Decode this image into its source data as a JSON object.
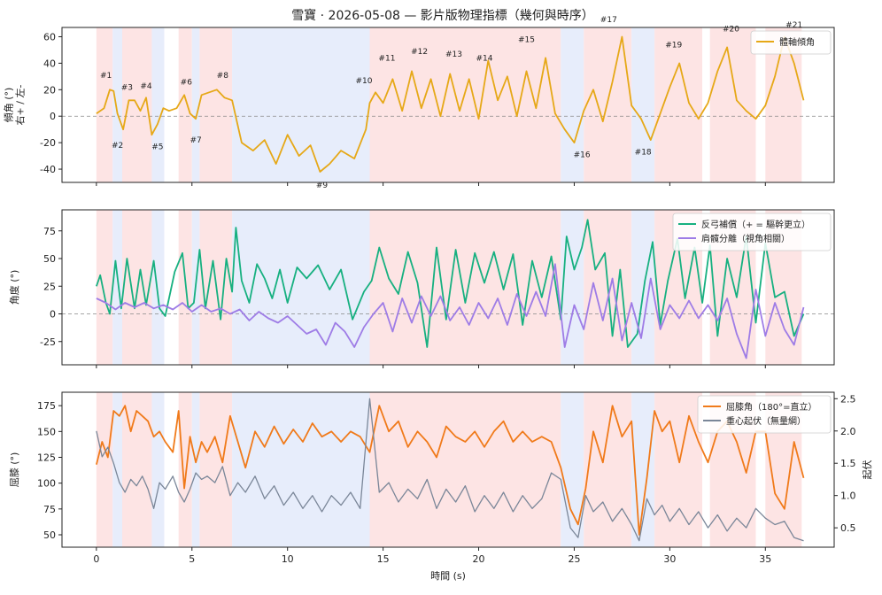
{
  "figure": {
    "title": "雪寶 · 2026-05-08 — 影片版物理指標（幾何與時序）"
  },
  "colors": {
    "tilt": "#e6a817",
    "compensation": "#17b080",
    "separation": "#9e7ce6",
    "knee": "#f07a1a",
    "cog": "#7a8698",
    "band_red": "#fde4e4",
    "band_blue": "#e7edfb",
    "zero_line": "#888888",
    "frame": "#222222"
  },
  "chart_data": [
    {
      "type": "line",
      "panel": "top",
      "ylabel": "傾角 (°)\n右+ / 左-",
      "xlim": [
        -1.8,
        38.6
      ],
      "ylim": [
        -50,
        67
      ],
      "yticks": [
        -40,
        -20,
        0,
        20,
        40,
        60
      ],
      "zero_line": true,
      "legend_position": "top-right",
      "series": [
        {
          "name": "體軸傾角",
          "color": "#e6a817",
          "x": [
            0,
            0.4,
            0.7,
            0.9,
            1.1,
            1.4,
            1.7,
            2.0,
            2.3,
            2.6,
            2.9,
            3.2,
            3.5,
            3.8,
            4.2,
            4.6,
            4.9,
            5.2,
            5.5,
            5.9,
            6.3,
            6.7,
            7.1,
            7.6,
            8.2,
            8.8,
            9.4,
            10.0,
            10.6,
            11.2,
            11.7,
            12.2,
            12.8,
            13.5,
            14.1,
            14.3,
            14.6,
            15.0,
            15.5,
            16.0,
            16.5,
            17.0,
            17.5,
            18.0,
            18.5,
            19.0,
            19.5,
            20.0,
            20.5,
            21.0,
            21.5,
            22.0,
            22.5,
            23.0,
            23.5,
            24.0,
            24.5,
            25.0,
            25.5,
            26.0,
            26.5,
            27.0,
            27.5,
            28.0,
            28.5,
            29.0,
            29.5,
            30.0,
            30.5,
            31.0,
            31.5,
            32.0,
            32.5,
            33.0,
            33.5,
            34.0,
            34.5,
            35.0,
            35.5,
            36.0,
            36.5,
            37.0
          ],
          "y": [
            2,
            6,
            20,
            19,
            2,
            -10,
            12,
            12,
            4,
            14,
            -14,
            -6,
            6,
            4,
            6,
            16,
            2,
            -2,
            16,
            18,
            20,
            14,
            12,
            -20,
            -26,
            -18,
            -36,
            -14,
            -30,
            -22,
            -42,
            -36,
            -26,
            -32,
            -10,
            10,
            18,
            10,
            28,
            4,
            34,
            6,
            28,
            0,
            32,
            4,
            28,
            -2,
            42,
            12,
            30,
            0,
            34,
            6,
            44,
            2,
            -10,
            -20,
            4,
            20,
            -4,
            26,
            60,
            8,
            -2,
            -18,
            2,
            22,
            40,
            10,
            -2,
            10,
            34,
            52,
            12,
            4,
            -2,
            8,
            30,
            60,
            40,
            12
          ]
        }
      ],
      "annotations": [
        {
          "label": "#1",
          "x": 0.5,
          "y": 29
        },
        {
          "label": "#2",
          "x": 1.1,
          "y": -24
        },
        {
          "label": "#3",
          "x": 1.6,
          "y": 20
        },
        {
          "label": "#4",
          "x": 2.6,
          "y": 21
        },
        {
          "label": "#5",
          "x": 3.2,
          "y": -25
        },
        {
          "label": "#6",
          "x": 4.7,
          "y": 24
        },
        {
          "label": "#7",
          "x": 5.2,
          "y": -20
        },
        {
          "label": "#8",
          "x": 6.6,
          "y": 29
        },
        {
          "label": "#9",
          "x": 11.8,
          "y": -54
        },
        {
          "label": "#10",
          "x": 14.0,
          "y": 25
        },
        {
          "label": "#11",
          "x": 15.2,
          "y": 42
        },
        {
          "label": "#12",
          "x": 16.9,
          "y": 47
        },
        {
          "label": "#13",
          "x": 18.7,
          "y": 45
        },
        {
          "label": "#14",
          "x": 20.3,
          "y": 42
        },
        {
          "label": "#15",
          "x": 22.5,
          "y": 56
        },
        {
          "label": "#16",
          "x": 25.4,
          "y": -31
        },
        {
          "label": "#17",
          "x": 26.8,
          "y": 71
        },
        {
          "label": "#18",
          "x": 28.6,
          "y": -29
        },
        {
          "label": "#19",
          "x": 30.2,
          "y": 52
        },
        {
          "label": "#20",
          "x": 33.2,
          "y": 64
        },
        {
          "label": "#21",
          "x": 36.5,
          "y": 67
        }
      ]
    },
    {
      "type": "line",
      "panel": "middle",
      "ylabel": "角度 (°)",
      "xlim": [
        -1.8,
        38.6
      ],
      "ylim": [
        -46,
        94
      ],
      "yticks": [
        -25,
        0,
        25,
        50,
        75
      ],
      "zero_line": true,
      "legend_position": "top-right",
      "series": [
        {
          "name": "反弓補償（+ = 驅幹更立）",
          "color": "#17b080",
          "x": [
            0,
            0.2,
            0.5,
            0.7,
            1.0,
            1.3,
            1.6,
            2.0,
            2.3,
            2.6,
            3.0,
            3.3,
            3.6,
            4.1,
            4.5,
            4.8,
            5.1,
            5.4,
            5.7,
            6.1,
            6.5,
            6.8,
            7.1,
            7.3,
            7.6,
            8.0,
            8.4,
            8.8,
            9.2,
            9.6,
            10.0,
            10.5,
            11.0,
            11.6,
            12.2,
            12.8,
            13.4,
            14.0,
            14.4,
            14.8,
            15.3,
            15.8,
            16.3,
            16.8,
            17.3,
            17.8,
            18.3,
            18.8,
            19.3,
            19.8,
            20.3,
            20.8,
            21.3,
            21.8,
            22.3,
            22.8,
            23.3,
            23.8,
            24.3,
            24.6,
            25.0,
            25.4,
            25.7,
            26.1,
            26.6,
            27.0,
            27.4,
            27.8,
            28.3,
            28.7,
            29.1,
            29.5,
            29.9,
            30.4,
            30.8,
            31.3,
            31.7,
            32.1,
            32.5,
            33.0,
            33.5,
            34.0,
            34.5,
            35.0,
            35.5,
            36.0,
            36.5,
            37.0
          ],
          "y": [
            25,
            35,
            10,
            0,
            48,
            5,
            50,
            5,
            40,
            8,
            48,
            5,
            -2,
            38,
            55,
            5,
            10,
            58,
            5,
            48,
            -5,
            50,
            20,
            78,
            30,
            10,
            45,
            32,
            14,
            40,
            10,
            42,
            32,
            44,
            22,
            40,
            -5,
            20,
            30,
            60,
            32,
            18,
            56,
            28,
            -30,
            60,
            -5,
            58,
            10,
            55,
            28,
            56,
            22,
            54,
            -10,
            48,
            15,
            52,
            -5,
            70,
            40,
            60,
            85,
            40,
            55,
            -20,
            40,
            -30,
            -18,
            30,
            65,
            -10,
            30,
            68,
            14,
            60,
            10,
            62,
            -20,
            50,
            15,
            70,
            -8,
            64,
            15,
            20,
            -20,
            0
          ]
        },
        {
          "name": "肩髖分離（視角相關）",
          "color": "#9e7ce6",
          "x": [
            0,
            0.5,
            1.0,
            1.5,
            2.0,
            2.5,
            3.0,
            3.5,
            4.0,
            4.5,
            5.0,
            5.5,
            6.0,
            6.5,
            7.0,
            7.5,
            8.0,
            8.5,
            9.0,
            9.5,
            10.0,
            10.5,
            11.0,
            11.5,
            12.0,
            12.5,
            13.0,
            13.5,
            14.0,
            14.5,
            15.0,
            15.5,
            16.0,
            16.5,
            17.0,
            17.5,
            18.0,
            18.5,
            19.0,
            19.5,
            20.0,
            20.5,
            21.0,
            21.5,
            22.0,
            22.5,
            23.0,
            23.5,
            24.0,
            24.5,
            25.0,
            25.5,
            26.0,
            26.5,
            27.0,
            27.5,
            28.0,
            28.5,
            29.0,
            29.5,
            30.0,
            30.5,
            31.0,
            31.5,
            32.0,
            32.5,
            33.0,
            33.5,
            34.0,
            34.5,
            35.0,
            35.5,
            36.0,
            36.5,
            37.0
          ],
          "y": [
            14,
            10,
            4,
            10,
            6,
            10,
            5,
            8,
            4,
            10,
            2,
            8,
            2,
            5,
            0,
            4,
            -6,
            2,
            -4,
            -8,
            -2,
            -10,
            -18,
            -14,
            -28,
            -8,
            -16,
            -30,
            -12,
            0,
            10,
            -16,
            14,
            -8,
            16,
            -2,
            16,
            -6,
            6,
            -10,
            10,
            -4,
            14,
            -10,
            18,
            -2,
            20,
            -2,
            45,
            -30,
            8,
            -14,
            28,
            -6,
            32,
            -24,
            10,
            -22,
            32,
            -14,
            8,
            -4,
            12,
            -4,
            8,
            -6,
            14,
            -18,
            -40,
            22,
            -20,
            10,
            -14,
            -28,
            6
          ]
        }
      ]
    },
    {
      "type": "line",
      "panel": "bottom",
      "ylabel": "屈膝 (°)",
      "y2label": "起伏",
      "xlim": [
        -1.8,
        38.6
      ],
      "ylim": [
        38,
        188
      ],
      "y2lim": [
        0.2,
        2.6
      ],
      "yticks": [
        50,
        75,
        100,
        125,
        150,
        175
      ],
      "y2ticks": [
        0.5,
        1.0,
        1.5,
        2.0,
        2.5
      ],
      "xticks": [
        0,
        5,
        10,
        15,
        20,
        25,
        30,
        35
      ],
      "xlabel": "時間 (s)",
      "legend_position": "top-right",
      "series": [
        {
          "name": "屈膝角（180°=直立）",
          "color": "#f07a1a",
          "axis": "left",
          "x": [
            0,
            0.3,
            0.6,
            0.9,
            1.2,
            1.5,
            1.8,
            2.1,
            2.4,
            2.7,
            3.0,
            3.3,
            3.6,
            4.0,
            4.3,
            4.6,
            4.9,
            5.2,
            5.5,
            5.8,
            6.2,
            6.6,
            7.0,
            7.4,
            7.8,
            8.3,
            8.8,
            9.3,
            9.8,
            10.3,
            10.8,
            11.3,
            11.8,
            12.3,
            12.8,
            13.3,
            13.8,
            14.3,
            14.8,
            15.3,
            15.8,
            16.3,
            16.8,
            17.3,
            17.8,
            18.3,
            18.8,
            19.3,
            19.8,
            20.3,
            20.8,
            21.3,
            21.8,
            22.3,
            22.8,
            23.3,
            23.8,
            24.3,
            24.8,
            25.2,
            25.6,
            26.0,
            26.5,
            27.0,
            27.5,
            28.0,
            28.4,
            28.8,
            29.2,
            29.6,
            30.0,
            30.5,
            31.0,
            31.5,
            32.0,
            32.5,
            33.0,
            33.5,
            34.0,
            34.5,
            35.0,
            35.5,
            36.0,
            36.5,
            37.0
          ],
          "y": [
            118,
            140,
            125,
            170,
            165,
            175,
            150,
            170,
            165,
            160,
            145,
            150,
            140,
            130,
            170,
            95,
            145,
            120,
            140,
            130,
            145,
            120,
            165,
            140,
            115,
            150,
            135,
            155,
            138,
            152,
            140,
            158,
            145,
            150,
            140,
            150,
            145,
            130,
            175,
            150,
            160,
            135,
            150,
            140,
            125,
            155,
            145,
            140,
            150,
            135,
            150,
            160,
            140,
            150,
            140,
            145,
            140,
            115,
            75,
            60,
            95,
            150,
            120,
            175,
            145,
            160,
            50,
            105,
            170,
            150,
            160,
            120,
            165,
            140,
            120,
            150,
            160,
            140,
            110,
            150,
            150,
            90,
            75,
            140,
            105
          ]
        },
        {
          "name": "重心起伏（無量綱）",
          "color": "#7a8698",
          "axis": "right",
          "x": [
            0,
            0.3,
            0.6,
            0.9,
            1.2,
            1.5,
            1.8,
            2.1,
            2.4,
            2.7,
            3.0,
            3.3,
            3.6,
            4.0,
            4.3,
            4.6,
            4.9,
            5.2,
            5.5,
            5.8,
            6.2,
            6.6,
            7.0,
            7.4,
            7.8,
            8.3,
            8.8,
            9.3,
            9.8,
            10.3,
            10.8,
            11.3,
            11.8,
            12.3,
            12.8,
            13.3,
            13.8,
            14.3,
            14.8,
            15.3,
            15.8,
            16.3,
            16.8,
            17.3,
            17.8,
            18.3,
            18.8,
            19.3,
            19.8,
            20.3,
            20.8,
            21.3,
            21.8,
            22.3,
            22.8,
            23.3,
            23.8,
            24.3,
            24.8,
            25.2,
            25.6,
            26.0,
            26.5,
            27.0,
            27.5,
            28.0,
            28.4,
            28.8,
            29.2,
            29.6,
            30.0,
            30.5,
            31.0,
            31.5,
            32.0,
            32.5,
            33.0,
            33.5,
            34.0,
            34.5,
            35.0,
            35.5,
            36.0,
            36.5,
            37.0
          ],
          "y": [
            2.0,
            1.6,
            1.75,
            1.5,
            1.2,
            1.05,
            1.25,
            1.15,
            1.3,
            1.1,
            0.8,
            1.2,
            1.1,
            1.3,
            1.05,
            0.9,
            1.1,
            1.35,
            1.25,
            1.3,
            1.2,
            1.45,
            1.0,
            1.2,
            1.05,
            1.3,
            0.95,
            1.15,
            0.85,
            1.05,
            0.8,
            1.0,
            0.75,
            1.0,
            0.85,
            1.05,
            0.8,
            2.5,
            1.05,
            1.2,
            0.9,
            1.1,
            0.95,
            1.25,
            0.8,
            1.1,
            0.9,
            1.15,
            0.75,
            1.0,
            0.8,
            1.05,
            0.75,
            1.0,
            0.8,
            0.95,
            1.35,
            1.25,
            0.5,
            0.35,
            1.0,
            0.75,
            0.9,
            0.6,
            0.8,
            0.55,
            0.3,
            0.95,
            0.7,
            0.85,
            0.6,
            0.8,
            0.55,
            0.75,
            0.5,
            0.7,
            0.45,
            0.65,
            0.5,
            0.8,
            0.65,
            0.55,
            0.6,
            0.35,
            0.3
          ]
        }
      ]
    }
  ],
  "bands": [
    {
      "x0": 0.0,
      "x1": 0.85,
      "kind": "red"
    },
    {
      "x0": 0.85,
      "x1": 1.35,
      "kind": "blue"
    },
    {
      "x0": 1.35,
      "x1": 2.9,
      "kind": "red"
    },
    {
      "x0": 2.9,
      "x1": 3.55,
      "kind": "blue"
    },
    {
      "x0": 4.3,
      "x1": 5.0,
      "kind": "red"
    },
    {
      "x0": 5.0,
      "x1": 5.4,
      "kind": "blue"
    },
    {
      "x0": 5.4,
      "x1": 7.1,
      "kind": "red"
    },
    {
      "x0": 7.1,
      "x1": 14.3,
      "kind": "blue"
    },
    {
      "x0": 14.3,
      "x1": 24.3,
      "kind": "red"
    },
    {
      "x0": 24.3,
      "x1": 25.5,
      "kind": "blue"
    },
    {
      "x0": 25.5,
      "x1": 28.0,
      "kind": "red"
    },
    {
      "x0": 28.0,
      "x1": 29.2,
      "kind": "blue"
    },
    {
      "x0": 29.2,
      "x1": 31.7,
      "kind": "red"
    },
    {
      "x0": 32.1,
      "x1": 34.5,
      "kind": "red"
    },
    {
      "x0": 35.0,
      "x1": 36.9,
      "kind": "red"
    }
  ]
}
